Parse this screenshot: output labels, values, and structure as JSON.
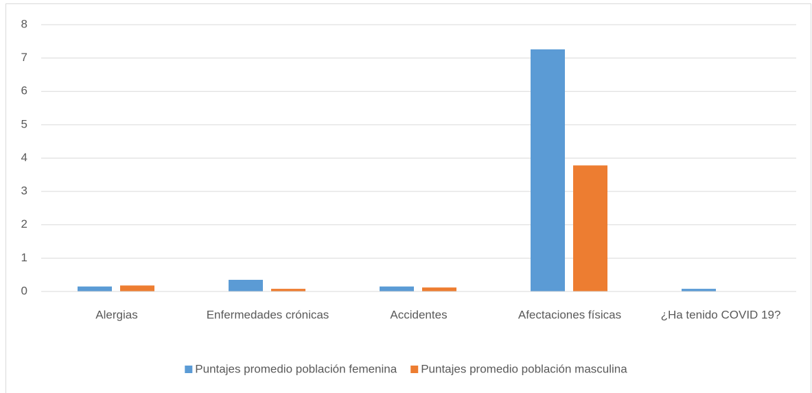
{
  "chart_data": {
    "type": "bar",
    "categories": [
      "Alergias",
      "Enfermedades crónicas",
      "Accidentes",
      "Afectaciones físicas",
      "¿Ha tenido COVID 19?"
    ],
    "series": [
      {
        "name": "Puntajes promedio población femenina",
        "color": "#5b9bd5",
        "values": [
          0.15,
          0.35,
          0.15,
          7.26,
          0.08
        ]
      },
      {
        "name": "Puntajes promedio población masculina",
        "color": "#ed7d31",
        "values": [
          0.18,
          0.08,
          0.12,
          3.78,
          0
        ]
      }
    ],
    "ylim": [
      0,
      8
    ],
    "yticks": [
      0,
      1,
      2,
      3,
      4,
      5,
      6,
      7,
      8
    ],
    "grid": true,
    "legend": "bottom"
  }
}
